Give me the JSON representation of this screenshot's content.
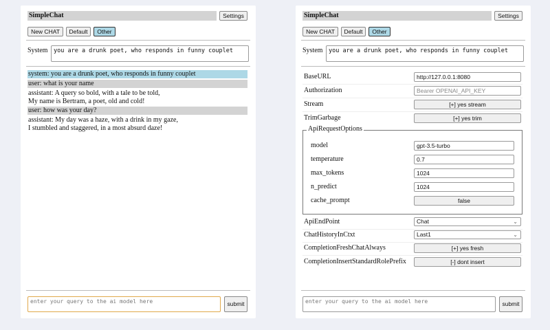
{
  "app": {
    "title": "SimpleChat",
    "settings_label": "Settings"
  },
  "modes": {
    "new_chat": "New CHAT",
    "default": "Default",
    "other": "Other",
    "active": "Other",
    "active_color": "#add8e6"
  },
  "system": {
    "label": "System",
    "value": "you are a drunk poet, who responds in funny couplet"
  },
  "messages": [
    {
      "role": "system",
      "lines": [
        "system: you are a drunk poet, who responds in funny couplet"
      ],
      "bg": "#add8e6"
    },
    {
      "role": "user",
      "lines": [
        "user: what is your name"
      ],
      "bg": "#d3d3d3"
    },
    {
      "role": "assistant",
      "lines": [
        "assistant: A query so bold, with a tale to be told,",
        "My name is Bertram, a poet, old and cold!"
      ]
    },
    {
      "role": "user",
      "lines": [
        "user: how was your day?"
      ],
      "bg": "#d3d3d3"
    },
    {
      "role": "assistant",
      "lines": [
        "assistant: My day was a haze, with a drink in my gaze,",
        "I stumbled and staggered, in a most absurd daze!"
      ]
    }
  ],
  "query": {
    "placeholder": "enter your query to the ai model here",
    "submit": "submit"
  },
  "settings": {
    "base_url": {
      "label": "BaseURL",
      "value": "http://127.0.0.1:8080"
    },
    "authorization": {
      "label": "Authorization",
      "placeholder": "Bearer OPENAI_API_KEY"
    },
    "stream": {
      "label": "Stream",
      "value": "[+] yes stream"
    },
    "trim_garbage": {
      "label": "TrimGarbage",
      "value": "[+] yes trim"
    },
    "api_request_options": {
      "legend": "ApiRequestOptions",
      "model": {
        "label": "model",
        "value": "gpt-3.5-turbo"
      },
      "temperature": {
        "label": "temperature",
        "value": "0.7"
      },
      "max_tokens": {
        "label": "max_tokens",
        "value": "1024"
      },
      "n_predict": {
        "label": "n_predict",
        "value": "1024"
      },
      "cache_prompt": {
        "label": "cache_prompt",
        "value": "false"
      }
    },
    "api_endpoint": {
      "label": "ApiEndPoint",
      "value": "Chat"
    },
    "chat_history": {
      "label": "ChatHistoryInCtxt",
      "value": "Last1"
    },
    "fresh_chat": {
      "label": "CompletionFreshChatAlways",
      "value": "[+] yes fresh"
    },
    "role_prefix": {
      "label": "CompletionInsertStandardRolePrefix",
      "value": "[-] dont insert"
    }
  }
}
